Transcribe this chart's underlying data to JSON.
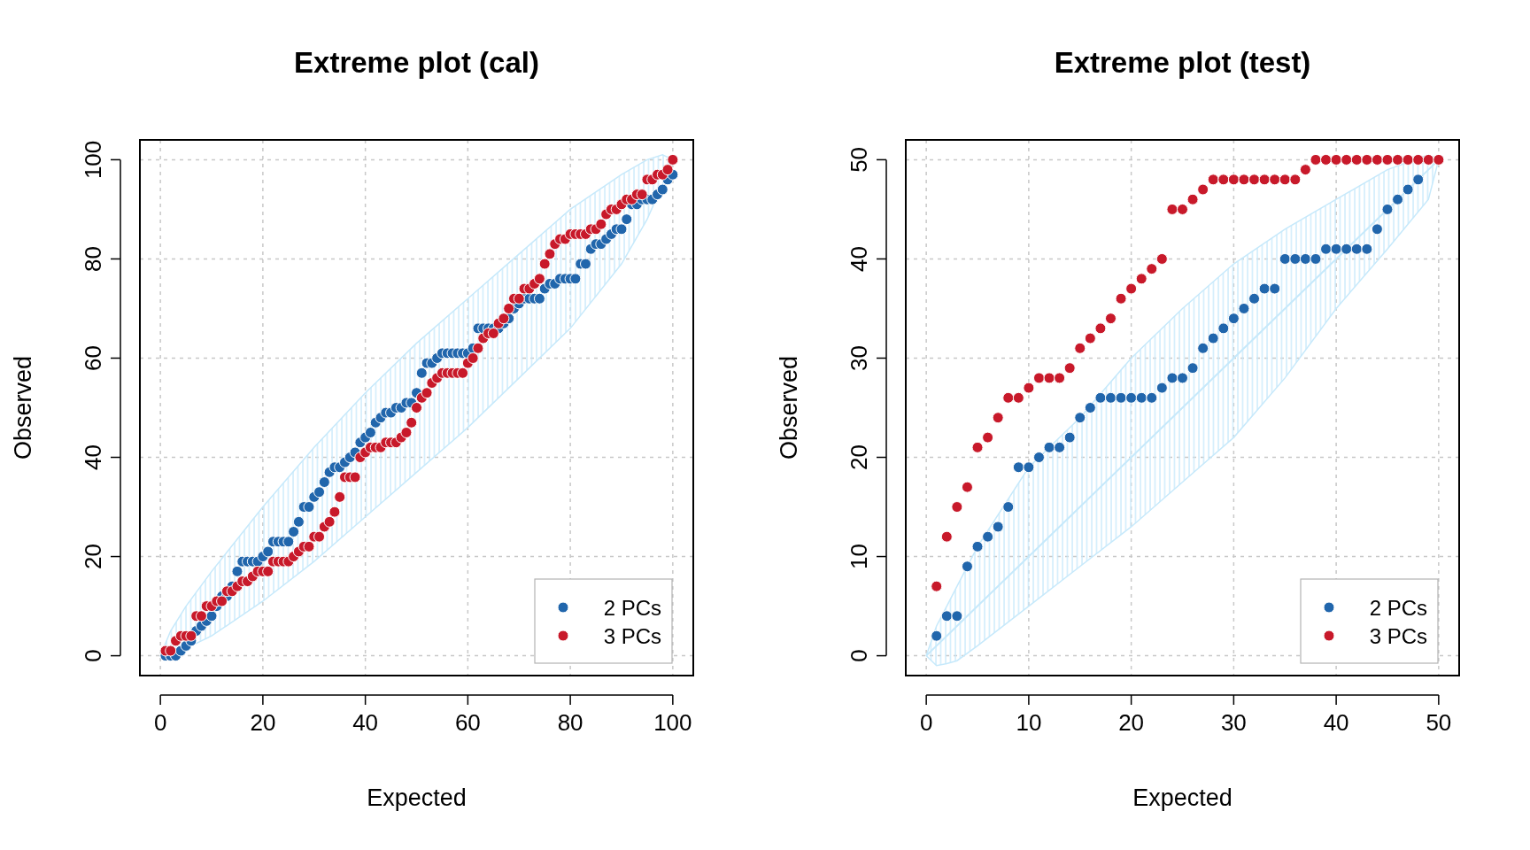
{
  "chart_data": [
    {
      "type": "scatter",
      "title": "Extreme plot (cal)",
      "xlabel": "Expected",
      "ylabel": "Observed",
      "xlim": [
        -4,
        104
      ],
      "ylim": [
        -4,
        104
      ],
      "xticks": [
        0,
        20,
        40,
        60,
        80,
        100
      ],
      "yticks": [
        0,
        20,
        40,
        60,
        80,
        100
      ],
      "grid": true,
      "legend": "bottom right",
      "marker": "circle",
      "series": [
        {
          "type": "line",
          "marker": "none",
          "color": "#c6e9fb",
          "x": [
            0,
            2,
            5,
            10,
            20,
            30,
            40,
            50,
            60,
            70,
            80,
            90,
            95,
            98,
            100
          ],
          "values": [
            null,
            null,
            null,
            null,
            null,
            null,
            null,
            null,
            null,
            null,
            null,
            null,
            null,
            null,
            null
          ],
          "upper": [
            0,
            5,
            10,
            17,
            30,
            42,
            53,
            63,
            72,
            81,
            90,
            97,
            100,
            101,
            100
          ],
          "lower": [
            0,
            0.5,
            1.5,
            4,
            11,
            19,
            28,
            37,
            46,
            56,
            66,
            79,
            88,
            95,
            100
          ]
        },
        {
          "name": "2 PCs",
          "color": "#2166ac",
          "x": [
            1,
            2,
            3,
            4,
            5,
            6,
            7,
            8,
            9,
            10,
            11,
            12,
            13,
            14,
            15,
            16,
            17,
            18,
            19,
            20,
            21,
            22,
            23,
            24,
            25,
            26,
            27,
            28,
            29,
            30,
            31,
            32,
            33,
            34,
            35,
            36,
            37,
            38,
            39,
            40,
            41,
            42,
            43,
            44,
            45,
            46,
            47,
            48,
            49,
            50,
            51,
            52,
            53,
            54,
            55,
            56,
            57,
            58,
            59,
            60,
            61,
            62,
            63,
            64,
            65,
            66,
            67,
            68,
            69,
            70,
            71,
            72,
            73,
            74,
            75,
            76,
            77,
            78,
            79,
            80,
            81,
            82,
            83,
            84,
            85,
            86,
            87,
            88,
            89,
            90,
            91,
            92,
            93,
            94,
            95,
            96,
            97,
            98,
            99,
            100
          ],
          "values": [
            0,
            0,
            0,
            1,
            2,
            3,
            5,
            6,
            7,
            8,
            10,
            12,
            12,
            14,
            17,
            19,
            19,
            19,
            19,
            20,
            21,
            23,
            23,
            23,
            23,
            25,
            27,
            30,
            30,
            32,
            33,
            35,
            37,
            38,
            38,
            39,
            40,
            41,
            43,
            44,
            45,
            47,
            48,
            49,
            49,
            50,
            50,
            51,
            51,
            53,
            57,
            59,
            59,
            60,
            61,
            61,
            61,
            61,
            61,
            61,
            62,
            66,
            66,
            66,
            66,
            66,
            67,
            68,
            70,
            71,
            72,
            72,
            72,
            72,
            74,
            75,
            75,
            76,
            76,
            76,
            76,
            79,
            79,
            82,
            83,
            83,
            84,
            85,
            86,
            86,
            88,
            91,
            91,
            92,
            92,
            92,
            93,
            94,
            96,
            97
          ]
        },
        {
          "name": "3 PCs",
          "color": "#c8192a",
          "x": [
            1,
            2,
            3,
            4,
            5,
            6,
            7,
            8,
            9,
            10,
            11,
            12,
            13,
            14,
            15,
            16,
            17,
            18,
            19,
            20,
            21,
            22,
            23,
            24,
            25,
            26,
            27,
            28,
            29,
            30,
            31,
            32,
            33,
            34,
            35,
            36,
            37,
            38,
            39,
            40,
            41,
            42,
            43,
            44,
            45,
            46,
            47,
            48,
            49,
            50,
            51,
            52,
            53,
            54,
            55,
            56,
            57,
            58,
            59,
            60,
            61,
            62,
            63,
            64,
            65,
            66,
            67,
            68,
            69,
            70,
            71,
            72,
            73,
            74,
            75,
            76,
            77,
            78,
            79,
            80,
            81,
            82,
            83,
            84,
            85,
            86,
            87,
            88,
            89,
            90,
            91,
            92,
            93,
            94,
            95,
            96,
            97,
            98,
            99,
            100
          ],
          "values": [
            1,
            1,
            3,
            4,
            4,
            4,
            8,
            8,
            10,
            10,
            11,
            11,
            13,
            13,
            14,
            15,
            15,
            16,
            17,
            17,
            17,
            19,
            19,
            19,
            19,
            20,
            21,
            22,
            22,
            24,
            24,
            26,
            27,
            29,
            32,
            36,
            36,
            36,
            40,
            41,
            42,
            42,
            42,
            43,
            43,
            43,
            44,
            45,
            47,
            50,
            52,
            53,
            55,
            56,
            57,
            57,
            57,
            57,
            57,
            59,
            60,
            62,
            64,
            65,
            65,
            67,
            68,
            70,
            72,
            72,
            74,
            74,
            75,
            76,
            79,
            81,
            83,
            84,
            84,
            85,
            85,
            85,
            85,
            86,
            86,
            87,
            89,
            90,
            90,
            91,
            92,
            92,
            93,
            93,
            96,
            96,
            97,
            97,
            98,
            100
          ]
        }
      ]
    },
    {
      "type": "scatter",
      "title": "Extreme plot (test)",
      "xlabel": "Expected",
      "ylabel": "Observed",
      "xlim": [
        -2,
        52
      ],
      "ylim": [
        -2,
        52
      ],
      "xticks": [
        0,
        10,
        20,
        30,
        40,
        50
      ],
      "yticks": [
        0,
        10,
        20,
        30,
        40,
        50
      ],
      "grid": true,
      "legend": "bottom right",
      "marker": "circle",
      "series": [
        {
          "type": "line",
          "marker": "none",
          "color": "#c6e9fb",
          "x": [
            0,
            1,
            2,
            3,
            5,
            10,
            15,
            20,
            25,
            30,
            35,
            40,
            45,
            49,
            50
          ],
          "values": [
            0,
            1,
            2,
            3,
            5,
            10,
            15,
            20,
            25,
            30,
            35,
            40,
            45,
            49,
            50
          ],
          "upper": [
            0,
            3,
            5,
            7,
            11,
            19,
            24,
            30,
            35,
            39.5,
            43,
            46,
            49,
            50.5,
            50
          ],
          "lower": [
            0,
            -1,
            -0.8,
            -0.5,
            1,
            5,
            9,
            13,
            17.5,
            22,
            28,
            35,
            41,
            46,
            50
          ]
        },
        {
          "name": "2 PCs",
          "color": "#2166ac",
          "x": [
            1,
            2,
            3,
            4,
            5,
            6,
            7,
            8,
            9,
            10,
            11,
            12,
            13,
            14,
            15,
            16,
            17,
            18,
            19,
            20,
            21,
            22,
            23,
            24,
            25,
            26,
            27,
            28,
            29,
            30,
            31,
            32,
            33,
            34,
            35,
            36,
            37,
            38,
            39,
            40,
            41,
            42,
            43,
            44,
            45,
            46,
            47,
            48
          ],
          "values": [
            2,
            4,
            4,
            9,
            11,
            12,
            13,
            15,
            19,
            19,
            20,
            21,
            21,
            22,
            24,
            25,
            26,
            26,
            26,
            26,
            26,
            26,
            27,
            28,
            28,
            29,
            31,
            32,
            33,
            34,
            35,
            36,
            37,
            37,
            40,
            40,
            40,
            40,
            41,
            41,
            41,
            41,
            41,
            43,
            45,
            46,
            47,
            48
          ]
        },
        {
          "name": "3 PCs",
          "color": "#c8192a",
          "x": [
            1,
            2,
            3,
            4,
            5,
            6,
            7,
            8,
            9,
            10,
            11,
            12,
            13,
            14,
            15,
            16,
            17,
            18,
            19,
            20,
            21,
            22,
            23,
            24,
            25,
            26,
            27,
            28,
            29,
            30,
            31,
            32,
            33,
            34,
            35,
            36,
            37,
            38,
            39,
            40,
            41,
            42,
            43,
            44,
            45,
            46,
            47,
            48,
            49,
            50
          ],
          "values": [
            7,
            12,
            15,
            17,
            21,
            22,
            24,
            26,
            26,
            27,
            28,
            28,
            28,
            29,
            31,
            32,
            33,
            34,
            36,
            37,
            38,
            39,
            40,
            45,
            45,
            46,
            47,
            48,
            48,
            48,
            48,
            48,
            48,
            48,
            48,
            48,
            49,
            50,
            50,
            50,
            50,
            50,
            50,
            50,
            50,
            50,
            50,
            50,
            50,
            50
          ]
        }
      ]
    }
  ]
}
